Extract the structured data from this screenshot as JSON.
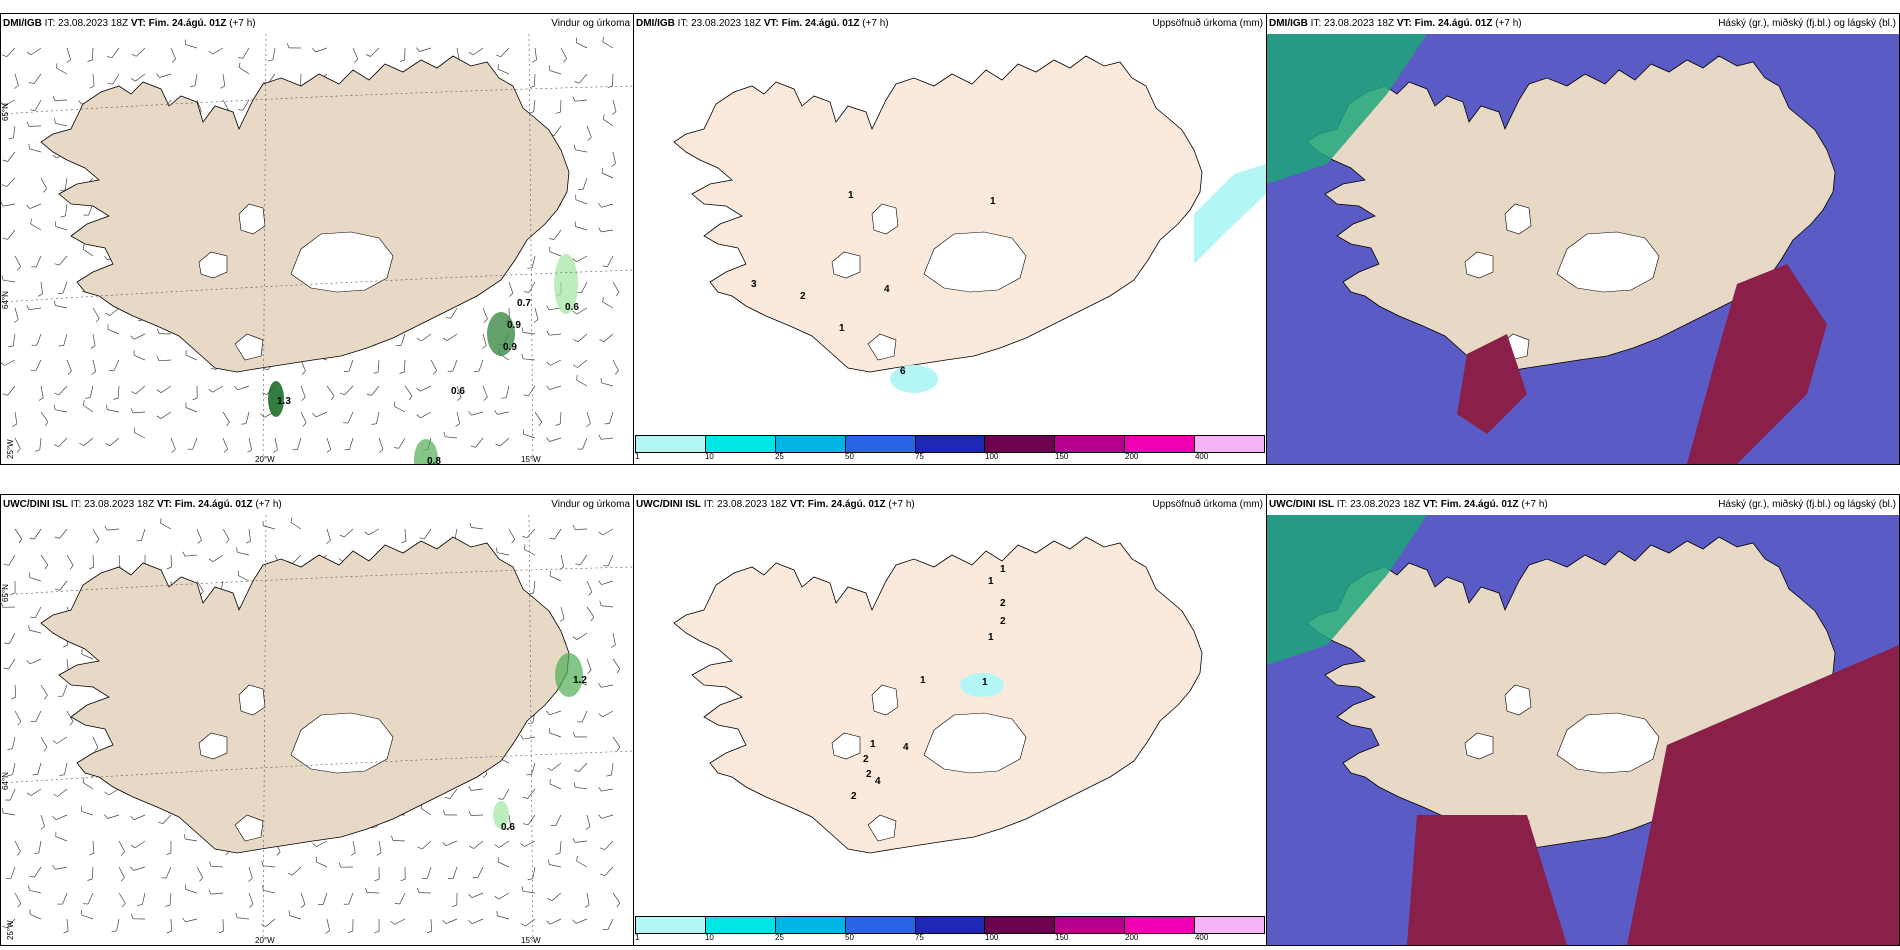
{
  "rows": [
    {
      "model": "DMI/IGB",
      "it_prefix": "IT:",
      "it": "23.08.2023 18Z",
      "vt_prefix": "VT:",
      "vt": "Fim. 24.ágú. 01Z",
      "lead": "(+7 h)",
      "panels": [
        {
          "title": "Vindur og úrkoma",
          "values": [
            "0.7",
            "0.6",
            "0.9",
            "0.9",
            "0.6",
            "1.3",
            "0.8"
          ]
        },
        {
          "title": "Uppsöfnuð úrkoma (mm)",
          "values": [
            "1",
            "1",
            "3",
            "2",
            "4",
            "1",
            "6"
          ]
        },
        {
          "title": "Háský (gr.), miðský (fj.bl.) og lágský (bl.)"
        }
      ],
      "axis_labels": {
        "lat1": "65°N",
        "lat2": "64°N",
        "lon_left": "25°W",
        "lon1": "20°W",
        "lon2": "15°W"
      }
    },
    {
      "model": "UWC/DINI ISL",
      "it_prefix": "IT:",
      "it": "23.08.2023 18Z",
      "vt_prefix": "VT:",
      "vt": "Fim. 24.ágú. 01Z",
      "lead": "(+7 h)",
      "panels": [
        {
          "title": "Vindur og úrkoma",
          "values": [
            "1.2",
            "0.6"
          ]
        },
        {
          "title": "Uppsöfnuð úrkoma (mm)",
          "values": [
            "1",
            "1",
            "2",
            "2",
            "1",
            "1",
            "1",
            "1",
            "4",
            "2",
            "4",
            "2",
            "2"
          ]
        },
        {
          "title": "Háský (gr.), miðský (fj.bl.) og lágský (bl.)"
        }
      ],
      "axis_labels": {
        "lat1": "65°N",
        "lat2": "64°N",
        "lon_left": "25°W",
        "lon1": "20°W",
        "lon2": "15°W"
      }
    }
  ],
  "colorbar": {
    "labels": [
      "1",
      "10",
      "25",
      "50",
      "75",
      "100",
      "150",
      "200",
      "400"
    ],
    "colors": [
      "#b4f5f5",
      "#00e6e6",
      "#00b4e6",
      "#2864e6",
      "#1e28b4",
      "#6e0050",
      "#b4008c",
      "#f000b4",
      "#f5b4f5"
    ]
  },
  "colors": {
    "land_wind": "#e8d9c6",
    "land_precip": "#fbeadb",
    "land_cloud": "#e8d9c6",
    "high_cloud": "#1fa67a",
    "mid_cloud": "#5b5bc6",
    "low_cloud": "#8a1f4a",
    "glacier": "#ffffff"
  }
}
